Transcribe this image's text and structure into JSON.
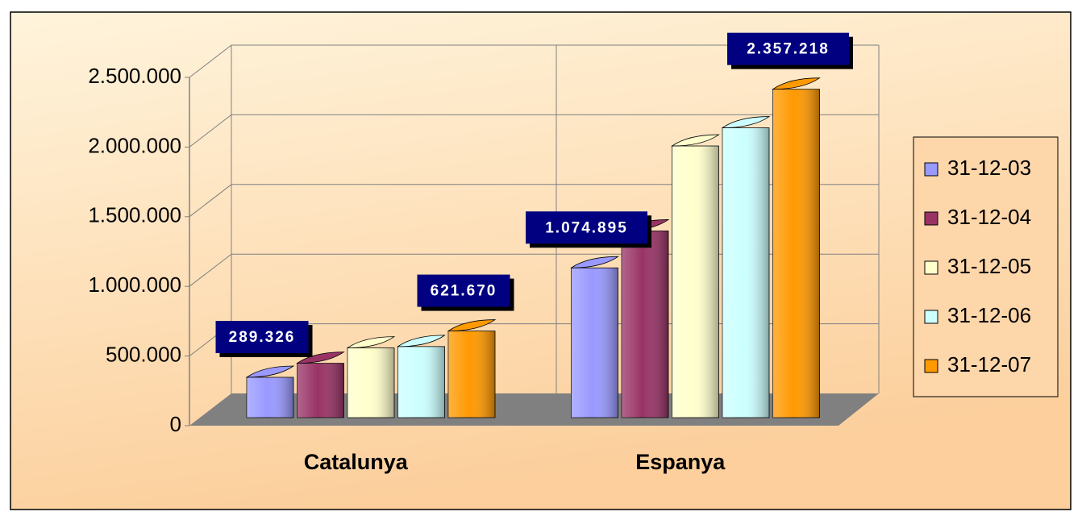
{
  "chart_data": {
    "type": "bar3d",
    "categories": [
      "Catalunya",
      "Espanya"
    ],
    "series": [
      {
        "name": "31-12-03",
        "color": "#9999ff",
        "values": [
          289326,
          1074895
        ],
        "value_labels": [
          "289.326",
          "1.074.895"
        ]
      },
      {
        "name": "31-12-04",
        "color": "#993366",
        "values": [
          390000,
          1340000
        ]
      },
      {
        "name": "31-12-05",
        "color": "#ffffcc",
        "values": [
          500000,
          1950000
        ]
      },
      {
        "name": "31-12-06",
        "color": "#ccffff",
        "values": [
          510000,
          2080000
        ]
      },
      {
        "name": "31-12-07",
        "color": "#ff9900",
        "values": [
          621670,
          2357218
        ],
        "value_labels": [
          "621.670",
          "2.357.218"
        ]
      }
    ],
    "ylim": [
      0,
      2500000
    ],
    "yticks": [
      0,
      {
        "value": 500000,
        "label": "500.000"
      },
      {
        "value": 1000000,
        "label": "1.000.000"
      },
      {
        "value": 1500000,
        "label": "1.500.000"
      },
      {
        "value": 2000000,
        "label": "2.000.000"
      },
      {
        "value": 2500000,
        "label": "2.500.000"
      }
    ],
    "grid": true,
    "legend": "right"
  }
}
